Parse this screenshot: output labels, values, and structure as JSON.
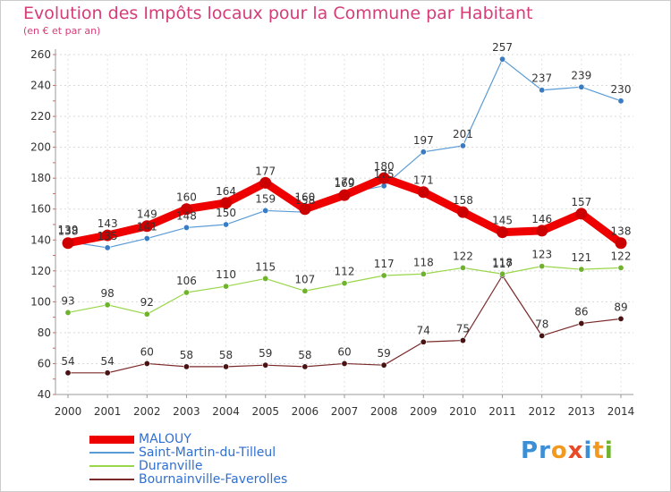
{
  "chart_data": {
    "type": "line",
    "title": "Evolution des Impôts locaux pour la Commune par Habitant",
    "subtitle": "(en € et par an)",
    "xlabel": "",
    "ylabel": "",
    "ylim": [
      40,
      260
    ],
    "yticks": [
      40,
      60,
      80,
      100,
      120,
      140,
      160,
      180,
      200,
      220,
      240,
      260
    ],
    "x": [
      "2000",
      "2001",
      "2002",
      "2003",
      "2004",
      "2005",
      "2006",
      "2007",
      "2008",
      "2009",
      "2010",
      "2011",
      "2012",
      "2013",
      "2014"
    ],
    "legend_position": "bottom-left",
    "series": [
      {
        "name": "MALOUY",
        "color": "#ee0000",
        "values": [
          138,
          143,
          149,
          160,
          164,
          177,
          160,
          169,
          180,
          171,
          158,
          145,
          146,
          157,
          138
        ]
      },
      {
        "name": "Saint-Martin-du-Tilleul",
        "color": "#5b9bd5",
        "values": [
          139,
          135,
          141,
          148,
          150,
          159,
          158,
          170,
          175,
          197,
          201,
          257,
          237,
          239,
          230
        ]
      },
      {
        "name": "Duranville",
        "color": "#99d64a",
        "values": [
          93,
          98,
          92,
          106,
          110,
          115,
          107,
          112,
          117,
          118,
          122,
          118,
          123,
          121,
          122
        ]
      },
      {
        "name": "Bournainville-Faverolles",
        "color": "#7a2a2a",
        "values": [
          54,
          54,
          60,
          58,
          58,
          59,
          58,
          60,
          59,
          74,
          75,
          117,
          78,
          86,
          89
        ]
      }
    ]
  },
  "brand": {
    "text": "Proxiti"
  }
}
